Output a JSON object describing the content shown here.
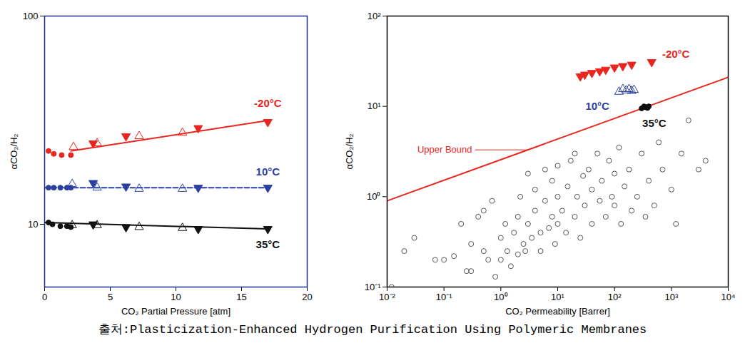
{
  "caption": "출처:Plasticization-Enhanced Hydrogen Purification Using Polymeric Membranes",
  "chart_data": [
    {
      "type": "scatter",
      "x_label": "CO₂ Partial Pressure [atm]",
      "y_label": "αCO₂/H₂",
      "log": "y",
      "grid": false,
      "xlim": [
        0,
        20
      ],
      "xticks": [
        0,
        5,
        10,
        15,
        20
      ],
      "ylim": [
        5,
        100
      ],
      "yticks": [
        10,
        100
      ],
      "series": [
        {
          "type": "line",
          "color": "#e8261f",
          "line_style": "solid",
          "x": [
            2,
            17
          ],
          "values": [
            22.5,
            31.5
          ]
        },
        {
          "type": "line",
          "color": "#2b3fa0",
          "line_style": "dashed",
          "x": [
            0,
            17
          ],
          "values": [
            15,
            15
          ]
        },
        {
          "type": "line",
          "color": "#111111",
          "line_style": "solid",
          "x": [
            0,
            17
          ],
          "values": [
            10.2,
            9.5
          ]
        },
        {
          "color": "#e8261f",
          "marker": "circle",
          "x": [
            0.3,
            0.7,
            1.3,
            2
          ],
          "values": [
            22.5,
            21.8,
            21.5,
            21.5
          ]
        },
        {
          "color": "#e8261f",
          "marker": "triangle-open",
          "x": [
            2.2,
            4,
            7.2,
            10.5
          ],
          "values": [
            23.5,
            24.5,
            26.5,
            27.5
          ]
        },
        {
          "color": "#e8261f",
          "marker": "triangle-down",
          "x": [
            3.7,
            6.2,
            11.7,
            17
          ],
          "values": [
            24.5,
            26.5,
            29,
            31
          ]
        },
        {
          "color": "#2b3fa0",
          "marker": "circle",
          "x": [
            0.3,
            0.7,
            1.2,
            1.7,
            2
          ],
          "values": [
            15,
            15,
            15,
            15,
            15
          ]
        },
        {
          "color": "#2b3fa0",
          "marker": "triangle-open",
          "x": [
            2.1,
            4,
            7.2,
            10.5
          ],
          "values": [
            15.6,
            15,
            14.8,
            14.8
          ]
        },
        {
          "color": "#2b3fa0",
          "marker": "triangle-down",
          "x": [
            3.7,
            6.2,
            11.7,
            17
          ],
          "values": [
            15.8,
            15.2,
            15,
            15
          ]
        },
        {
          "color": "#111111",
          "marker": "circle",
          "x": [
            0.3,
            0.6,
            1.2,
            1.7,
            2
          ],
          "values": [
            10.2,
            10,
            9.8,
            9.8,
            9.7
          ]
        },
        {
          "color": "#111111",
          "marker": "triangle-open",
          "x": [
            2.1,
            4,
            7.2,
            10.5
          ],
          "values": [
            9.9,
            9.9,
            9.7,
            9.6
          ]
        },
        {
          "color": "#111111",
          "marker": "triangle-down",
          "x": [
            3.7,
            6.2,
            11.7,
            17
          ],
          "values": [
            10,
            9.7,
            9.5,
            9.5
          ]
        }
      ],
      "annotations": [
        {
          "text": "-20°C",
          "x": 17,
          "y": 38,
          "color": "#e8261f"
        },
        {
          "text": "10°C",
          "x": 17,
          "y": 17.8,
          "color": "#2b3fa0"
        },
        {
          "text": "35°C",
          "x": 17,
          "y": 8,
          "color": "#111111"
        }
      ]
    },
    {
      "type": "scatter",
      "x_label": "CO₂ Permeability [Barrer]",
      "y_label": "αCO₂/H₂",
      "log": true,
      "grid": false,
      "xlim": [
        0.01,
        10000
      ],
      "xticks": [
        {
          "value": 0.01,
          "label": "10⁻²"
        },
        {
          "value": 0.1,
          "label": "10⁻¹"
        },
        {
          "value": 1,
          "label": "10⁰"
        },
        {
          "value": 10,
          "label": "10¹"
        },
        {
          "value": 100,
          "label": "10²"
        },
        {
          "value": 1000,
          "label": "10³"
        },
        {
          "value": 10000,
          "label": "10⁴"
        }
      ],
      "ylim": [
        0.1,
        100
      ],
      "yticks": [
        {
          "value": 0.1,
          "label": "10⁻¹"
        },
        {
          "value": 1,
          "label": "10⁰"
        },
        {
          "value": 10,
          "label": "10¹"
        },
        {
          "value": 100,
          "label": "10²"
        }
      ],
      "series": [
        {
          "color": "#555555",
          "marker": "circle-open",
          "x": [
            0.012,
            0.02,
            0.03,
            0.07,
            0.1,
            0.15,
            0.2,
            0.25,
            0.3,
            0.4,
            0.5,
            0.6,
            0.7,
            0.8,
            1,
            1,
            1.2,
            1.3,
            1.5,
            1.7,
            2,
            2,
            2.2,
            2.5,
            2.7,
            3,
            3,
            3.5,
            4,
            4,
            5,
            5,
            6,
            6,
            7,
            8,
            8,
            9,
            10,
            10,
            10,
            12,
            14,
            15,
            17,
            20,
            20,
            22,
            25,
            28,
            30,
            35,
            40,
            40,
            50,
            55,
            60,
            70,
            80,
            90,
            100,
            100,
            120,
            130,
            150,
            180,
            200,
            250,
            300,
            350,
            400,
            500,
            600,
            700,
            1000,
            1500,
            2000,
            3000,
            4000,
            1200,
            0.3,
            0.5
          ],
          "values": [
            0.1,
            0.25,
            0.35,
            0.2,
            0.2,
            0.22,
            0.5,
            0.15,
            0.3,
            0.6,
            0.25,
            0.2,
            0.9,
            0.13,
            0.2,
            0.35,
            0.5,
            0.25,
            0.17,
            0.4,
            0.23,
            0.6,
            1,
            0.3,
            0.25,
            1.8,
            0.5,
            0.35,
            0.7,
            1.2,
            0.25,
            0.4,
            0.9,
            2,
            0.45,
            0.6,
            1.5,
            0.3,
            0.5,
            1,
            2.2,
            0.7,
            0.4,
            1.3,
            2.5,
            0.6,
            3,
            1,
            0.35,
            1.7,
            0.8,
            2,
            0.5,
            1.2,
            3,
            0.9,
            1.5,
            0.6,
            2.5,
            1,
            0.8,
            1.8,
            3.5,
            0.5,
            1.3,
            2,
            0.7,
            1,
            3,
            0.6,
            1.5,
            0.8,
            4,
            2,
            1.2,
            3,
            7,
            2,
            2.5,
            0.5,
            0.15,
            0.7
          ]
        },
        {
          "type": "line",
          "color": "#e8261f",
          "line_style": "solid",
          "x": [
            0.01,
            10000
          ],
          "values": [
            0.9,
            21
          ]
        },
        {
          "color": "#e8261f",
          "marker": "triangle-down",
          "x": [
            25,
            30,
            40,
            55,
            70,
            100,
            140,
            200,
            450
          ],
          "values": [
            21.5,
            22.5,
            23.5,
            24.5,
            25.5,
            27,
            28,
            29,
            31
          ]
        },
        {
          "color": "#2b3fa0",
          "marker": "triangle-open",
          "x": [
            120,
            140,
            160,
            180,
            200,
            220
          ],
          "values": [
            14.5,
            15.5,
            15,
            15.5,
            14.8,
            15.2
          ]
        },
        {
          "color": "#111111",
          "marker": "circle",
          "x": [
            300,
            330,
            350,
            380,
            400
          ],
          "values": [
            9.5,
            10,
            9.8,
            9.6,
            10
          ]
        }
      ],
      "annotations": [
        {
          "text": "Upper Bound",
          "x": 0.35,
          "y": 3.3,
          "to": [
            3,
            3.3
          ],
          "color": "#e8261f"
        },
        {
          "text": "-20°C",
          "x": 1200,
          "y": 38,
          "color": "#e8261f"
        },
        {
          "text": "10°C",
          "x": 50,
          "y": 10,
          "color": "#2b3fa0"
        },
        {
          "text": "35°C",
          "x": 500,
          "y": 6.5,
          "color": "#111111"
        }
      ]
    }
  ]
}
